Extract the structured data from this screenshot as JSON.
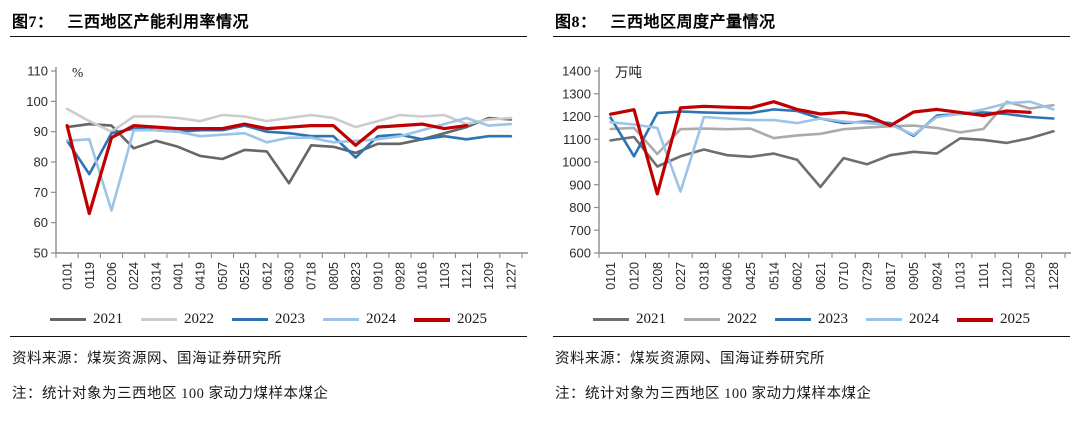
{
  "chart_data": [
    {
      "type": "line",
      "figure_label": "图7：",
      "title": "三西地区产能利用率情况",
      "unit": "%",
      "ylim": [
        50,
        110
      ],
      "y_step": 10,
      "grid": false,
      "legend_position": "bottom",
      "categories": [
        "0101",
        "0119",
        "0206",
        "0224",
        "0314",
        "0401",
        "0419",
        "0507",
        "0525",
        "0612",
        "0630",
        "0718",
        "0805",
        "0823",
        "0910",
        "0928",
        "1016",
        "1103",
        "1121",
        "1209",
        "1227"
      ],
      "series": [
        {
          "name": "2021",
          "color": "#666666",
          "values": [
            91.5,
            92.5,
            92,
            84.5,
            87,
            85,
            82,
            81,
            84,
            83.5,
            73,
            85.5,
            85,
            83,
            86,
            86,
            87.5,
            89.5,
            91.5,
            94.5,
            94
          ]
        },
        {
          "name": "2022",
          "color": "#cccccc",
          "values": [
            97.5,
            93.5,
            90,
            95,
            95,
            94.5,
            93.5,
            95.5,
            95,
            93.5,
            94.5,
            95.5,
            94.5,
            91.5,
            93.5,
            95.5,
            95,
            95.5,
            92.5,
            94,
            94.5
          ]
        },
        {
          "name": "2023",
          "color": "#2e74b5",
          "values": [
            87,
            76,
            89.5,
            91,
            90.5,
            90,
            90.5,
            90.5,
            92,
            90,
            89.5,
            88.5,
            88.5,
            81.5,
            88.5,
            89,
            87.5,
            88.5,
            87.5,
            88.5,
            88.5
          ]
        },
        {
          "name": "2024",
          "color": "#9dc3e6",
          "values": [
            87,
            87.5,
            64,
            90.5,
            90.5,
            90,
            88.5,
            89,
            89.5,
            86.5,
            88,
            88,
            86.5,
            87,
            87.5,
            88.5,
            90.5,
            92.5,
            94.5,
            92,
            92.5
          ]
        },
        {
          "name": "2025",
          "color": "#c00000",
          "values": [
            92,
            63,
            88,
            92,
            91.5,
            91,
            91,
            91,
            92.5,
            91,
            91.5,
            92,
            92,
            85.5,
            91.5,
            92,
            92.5,
            91,
            92,
            null,
            null
          ]
        }
      ],
      "source": "资料来源：煤炭资源网、国海证券研究所",
      "note": "注：统计对象为三西地区 100 家动力煤样本煤企"
    },
    {
      "type": "line",
      "figure_label": "图8：",
      "title": "三西地区周度产量情况",
      "unit": "万吨",
      "ylim": [
        600,
        1400
      ],
      "y_step": 100,
      "grid": false,
      "legend_position": "bottom",
      "categories": [
        "0101",
        "0120",
        "0208",
        "0227",
        "0318",
        "0406",
        "0425",
        "0514",
        "0602",
        "0621",
        "0710",
        "0729",
        "0817",
        "0905",
        "0924",
        "1013",
        "1101",
        "1120",
        "1209",
        "1228"
      ],
      "series": [
        {
          "name": "2021",
          "color": "#6e6e6e",
          "values": [
            1095,
            1110,
            980,
            1025,
            1055,
            1030,
            1023,
            1037,
            1010,
            890,
            1017,
            990,
            1030,
            1045,
            1037,
            1104,
            1097,
            1084,
            1105,
            1135
          ]
        },
        {
          "name": "2022",
          "color": "#ababab",
          "values": [
            1145,
            1150,
            1035,
            1144,
            1147,
            1144,
            1147,
            1105,
            1117,
            1124,
            1144,
            1151,
            1157,
            1160,
            1150,
            1130,
            1145,
            1265,
            1235,
            1250
          ]
        },
        {
          "name": "2023",
          "color": "#2e74b5",
          "values": [
            1195,
            1025,
            1215,
            1222,
            1218,
            1215,
            1215,
            1231,
            1224,
            1191,
            1171,
            1178,
            1171,
            1115,
            1204,
            1211,
            1218,
            1211,
            1198,
            1191
          ]
        },
        {
          "name": "2024",
          "color": "#9dc3e6",
          "values": [
            1175,
            1165,
            1150,
            870,
            1198,
            1191,
            1184,
            1184,
            1171,
            1191,
            1178,
            1171,
            1164,
            1120,
            1198,
            1211,
            1231,
            1258,
            1265,
            1231
          ]
        },
        {
          "name": "2025",
          "color": "#c00000",
          "values": [
            1210,
            1230,
            860,
            1238,
            1245,
            1241,
            1238,
            1265,
            1231,
            1211,
            1218,
            1204,
            1160,
            1220,
            1231,
            1218,
            1204,
            1224,
            1218,
            null
          ]
        }
      ],
      "source": "资料来源：煤炭资源网、国海证券研究所",
      "note": "注：统计对象为三西地区 100 家动力煤样本煤企"
    }
  ],
  "style": {
    "axis_color": "#8c8c8c",
    "tick_text_color": "#2b2b2b"
  }
}
